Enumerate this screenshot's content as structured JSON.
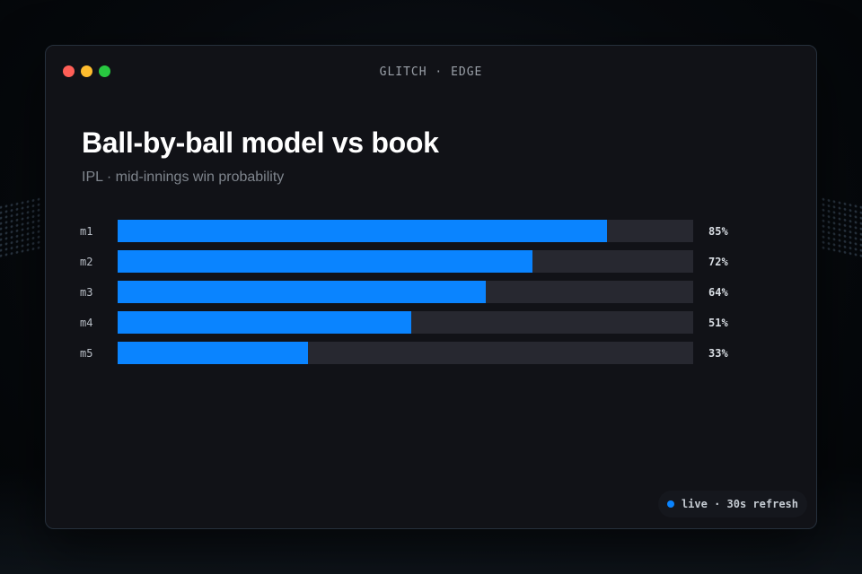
{
  "window": {
    "title": "GLITCH · EDGE"
  },
  "header": {
    "title": "Ball-by-ball model vs book",
    "subtitle": "IPL · mid-innings win probability"
  },
  "chart_data": {
    "type": "bar",
    "orientation": "horizontal",
    "categories": [
      "m1",
      "m2",
      "m3",
      "m4",
      "m5"
    ],
    "values": [
      85,
      72,
      64,
      51,
      33
    ],
    "value_labels": [
      "85%",
      "72%",
      "64%",
      "51%",
      "33%"
    ],
    "xlim": [
      0,
      100
    ],
    "bar_color": "#0a84ff",
    "track_color": "#272830"
  },
  "status": {
    "text": "live · 30s refresh",
    "indicator_color": "#0a84ff"
  }
}
